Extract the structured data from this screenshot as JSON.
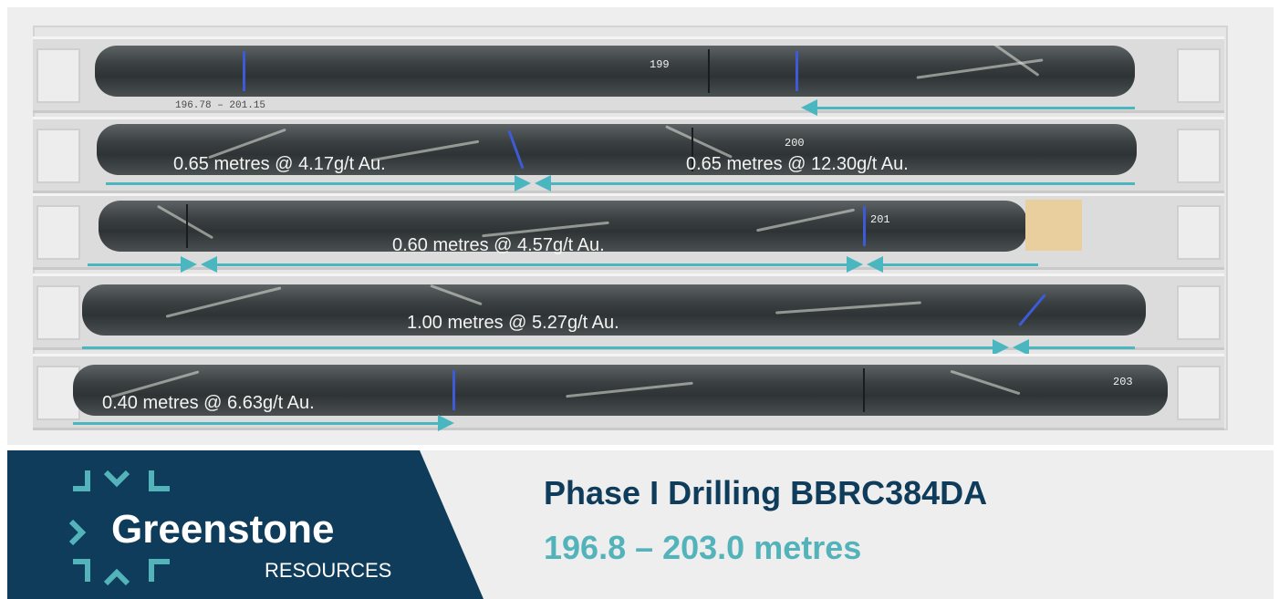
{
  "core_photo": {
    "intercepts": [
      {
        "text": "0.65 metres @ 4.17g/t Au."
      },
      {
        "text": "0.65 metres @ 12.30g/t Au."
      },
      {
        "text": "0.60 metres @ 4.57g/t Au."
      },
      {
        "text": "1.00 metres @ 5.27g/t Au."
      },
      {
        "text": "0.40 metres @ 6.63g/t Au."
      }
    ],
    "core_marks": {
      "m199": "199",
      "m200": "200",
      "m201": "201",
      "m203": "203",
      "interval": "196.78 – 201.15"
    },
    "arrow_color": "#4ab6bf",
    "marker_color": "#3d5bd6"
  },
  "banner": {
    "logo_name": "Greenstone",
    "logo_sub": "RESOURCES",
    "title": "Phase I Drilling BBRC384DA",
    "subtitle": "196.8 – 203.0 metres",
    "brand_color": "#0f3c5a",
    "accent_color": "#52b3ba"
  }
}
